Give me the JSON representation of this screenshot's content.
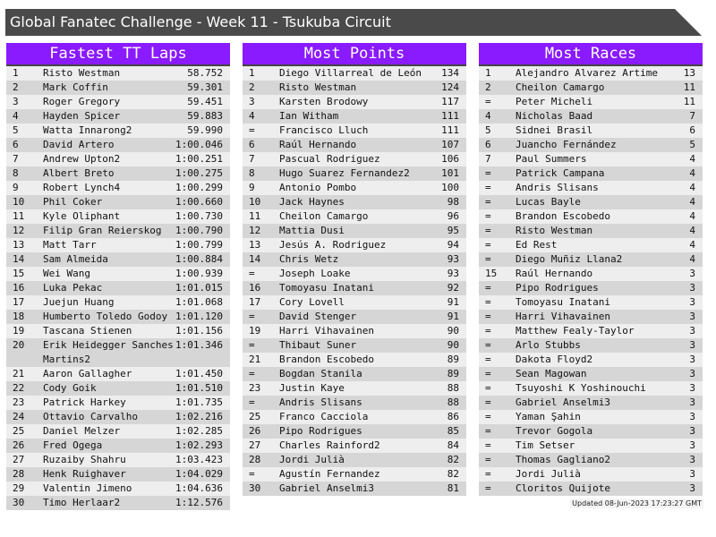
{
  "title": "Global Fanatec Challenge - Week 11 - Tsukuba Circuit",
  "colors": {
    "header": "#8a1aff",
    "titlebar": "#4a4a4a",
    "row_light": "#eeeeee",
    "row_dark": "#d6d6d6"
  },
  "tables": [
    {
      "title": "Fastest TT Laps",
      "rows": [
        [
          "1",
          "Risto Westman",
          "58.752"
        ],
        [
          "2",
          "Mark Coffin",
          "59.301"
        ],
        [
          "3",
          "Roger Gregory",
          "59.451"
        ],
        [
          "4",
          "Hayden Spicer",
          "59.883"
        ],
        [
          "5",
          "Watta Innarong2",
          "59.990"
        ],
        [
          "6",
          "David Artero",
          "1:00.046"
        ],
        [
          "7",
          "Andrew Upton2",
          "1:00.251"
        ],
        [
          "8",
          "Albert Breto",
          "1:00.275"
        ],
        [
          "9",
          "Robert Lynch4",
          "1:00.299"
        ],
        [
          "10",
          "Phil Coker",
          "1:00.660"
        ],
        [
          "11",
          "Kyle Oliphant",
          "1:00.730"
        ],
        [
          "12",
          "Filip Gran Reierskog",
          "1:00.790"
        ],
        [
          "13",
          "Matt Tarr",
          "1:00.799"
        ],
        [
          "14",
          "Sam Almeida",
          "1:00.884"
        ],
        [
          "15",
          "Wei Wang",
          "1:00.939"
        ],
        [
          "16",
          "Luka Pekac",
          "1:01.015"
        ],
        [
          "17",
          "Juejun Huang",
          "1:01.068"
        ],
        [
          "18",
          "Humberto Toledo Godoy",
          "1:01.120"
        ],
        [
          "19",
          "Tascana Stienen",
          "1:01.156"
        ],
        [
          "20",
          "Erik Heidegger Sanches Martins2",
          "1:01.346"
        ],
        [
          "21",
          "Aaron Gallagher",
          "1:01.450"
        ],
        [
          "22",
          "Cody Goik",
          "1:01.510"
        ],
        [
          "23",
          "Patrick Harkey",
          "1:01.735"
        ],
        [
          "24",
          "Ottavio Carvalho",
          "1:02.216"
        ],
        [
          "25",
          "Daniel Melzer",
          "1:02.285"
        ],
        [
          "26",
          "Fred Ogega",
          "1:02.293"
        ],
        [
          "27",
          "Ruzaiby Shahru",
          "1:03.423"
        ],
        [
          "28",
          "Henk Ruighaver",
          "1:04.029"
        ],
        [
          "29",
          "Valentin Jimeno",
          "1:04.636"
        ],
        [
          "30",
          "Timo Herlaar2",
          "1:12.576"
        ]
      ]
    },
    {
      "title": "Most Points",
      "rows": [
        [
          "1",
          "Diego Villarreal de León",
          "134"
        ],
        [
          "2",
          "Risto Westman",
          "124"
        ],
        [
          "3",
          "Karsten Brodowy",
          "117"
        ],
        [
          "4",
          "Ian Witham",
          "111"
        ],
        [
          "=",
          "Francisco Lluch",
          "111"
        ],
        [
          "6",
          "Raúl Hernando",
          "107"
        ],
        [
          "7",
          "Pascual Rodriguez",
          "106"
        ],
        [
          "8",
          "Hugo Suarez Fernandez2",
          "101"
        ],
        [
          "9",
          "Antonio Pombo",
          "100"
        ],
        [
          "10",
          "Jack Haynes",
          "98"
        ],
        [
          "11",
          "Cheilon Camargo",
          "96"
        ],
        [
          "12",
          "Mattia Dusi",
          "95"
        ],
        [
          "13",
          "Jesús A. Rodriguez",
          "94"
        ],
        [
          "14",
          "Chris Wetz",
          "93"
        ],
        [
          "=",
          "Joseph Loake",
          "93"
        ],
        [
          "16",
          "Tomoyasu Inatani",
          "92"
        ],
        [
          "17",
          "Cory Lovell",
          "91"
        ],
        [
          "=",
          "David Stenger",
          "91"
        ],
        [
          "19",
          "Harri Vihavainen",
          "90"
        ],
        [
          "=",
          "Thibaut Suner",
          "90"
        ],
        [
          "21",
          "Brandon Escobedo",
          "89"
        ],
        [
          "=",
          "Bogdan Stanila",
          "89"
        ],
        [
          "23",
          "Justin Kaye",
          "88"
        ],
        [
          "=",
          "Andris Slisans",
          "88"
        ],
        [
          "25",
          "Franco Cacciola",
          "86"
        ],
        [
          "26",
          "Pipo Rodrigues",
          "85"
        ],
        [
          "27",
          "Charles Rainford2",
          "84"
        ],
        [
          "28",
          "Jordi Julià",
          "82"
        ],
        [
          "=",
          "Agustín Fernandez",
          "82"
        ],
        [
          "30",
          "Gabriel Anselmi3",
          "81"
        ]
      ]
    },
    {
      "title": "Most Races",
      "rows": [
        [
          "1",
          "Alejandro Alvarez Artime",
          "13"
        ],
        [
          "2",
          "Cheilon Camargo",
          "11"
        ],
        [
          "=",
          "Peter Micheli",
          "11"
        ],
        [
          "4",
          "Nicholas Baad",
          "7"
        ],
        [
          "5",
          "Sidnei Brasil",
          "6"
        ],
        [
          "6",
          "Juancho Fernández",
          "5"
        ],
        [
          "7",
          "Paul Summers",
          "4"
        ],
        [
          "=",
          "Patrick Campana",
          "4"
        ],
        [
          "=",
          "Andris Slisans",
          "4"
        ],
        [
          "=",
          "Lucas Bayle",
          "4"
        ],
        [
          "=",
          "Brandon Escobedo",
          "4"
        ],
        [
          "=",
          "Risto Westman",
          "4"
        ],
        [
          "=",
          "Ed Rest",
          "4"
        ],
        [
          "=",
          "Diego Muñiz Llana2",
          "4"
        ],
        [
          "15",
          "Raúl Hernando",
          "3"
        ],
        [
          "=",
          "Pipo Rodrigues",
          "3"
        ],
        [
          "=",
          "Tomoyasu Inatani",
          "3"
        ],
        [
          "=",
          "Harri Vihavainen",
          "3"
        ],
        [
          "=",
          "Matthew Fealy-Taylor",
          "3"
        ],
        [
          "=",
          "Arlo Stubbs",
          "3"
        ],
        [
          "=",
          "Dakota Floyd2",
          "3"
        ],
        [
          "=",
          "Sean Magowan",
          "3"
        ],
        [
          "=",
          "Tsuyoshi K Yoshinouchi",
          "3"
        ],
        [
          "=",
          "Gabriel Anselmi3",
          "3"
        ],
        [
          "=",
          "Yaman Şahin",
          "3"
        ],
        [
          "=",
          "Trevor Gogola",
          "3"
        ],
        [
          "=",
          "Tim Setser",
          "3"
        ],
        [
          "=",
          "Thomas Gagliano2",
          "3"
        ],
        [
          "=",
          "Jordi Julià",
          "3"
        ],
        [
          "=",
          "Cloritos Quijote",
          "3"
        ]
      ]
    }
  ],
  "footer": "Updated 08-Jun-2023 17:23:27 GMT"
}
